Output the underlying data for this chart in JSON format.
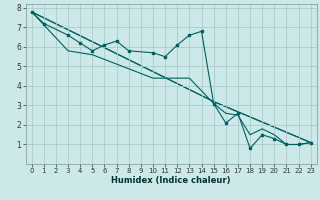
{
  "xlabel": "Humidex (Indice chaleur)",
  "background_color": "#cce8e8",
  "grid_color": "#aacccc",
  "line_color": "#006060",
  "xlim": [
    -0.5,
    23.5
  ],
  "ylim": [
    0,
    8.2
  ],
  "xticks": [
    0,
    1,
    2,
    3,
    4,
    5,
    6,
    7,
    8,
    9,
    10,
    11,
    12,
    13,
    14,
    15,
    16,
    17,
    18,
    19,
    20,
    21,
    22,
    23
  ],
  "yticks": [
    1,
    2,
    3,
    4,
    5,
    6,
    7,
    8
  ],
  "line1_x": [
    0,
    1,
    3,
    4,
    5,
    6,
    7,
    8,
    10,
    11,
    12,
    13,
    14,
    15,
    16,
    17,
    18,
    19,
    20,
    21,
    22,
    23
  ],
  "line1_y": [
    7.8,
    7.2,
    6.6,
    6.2,
    5.8,
    6.1,
    6.3,
    5.8,
    5.7,
    5.5,
    6.1,
    6.6,
    6.8,
    3.1,
    2.1,
    2.6,
    0.8,
    1.5,
    1.3,
    1.0,
    1.0,
    1.1
  ],
  "line2_x": [
    0,
    3,
    5,
    10,
    13,
    15,
    16,
    17,
    18,
    19,
    20,
    21,
    22,
    23
  ],
  "line2_y": [
    7.8,
    5.8,
    5.6,
    4.4,
    4.4,
    3.1,
    2.6,
    2.5,
    1.5,
    1.8,
    1.5,
    1.0,
    1.0,
    1.1
  ],
  "line3_x": [
    0,
    15,
    23
  ],
  "line3_y": [
    7.8,
    3.2,
    1.1
  ],
  "line4_x": [
    0,
    15,
    23
  ],
  "line4_y": [
    7.8,
    3.2,
    1.1
  ]
}
